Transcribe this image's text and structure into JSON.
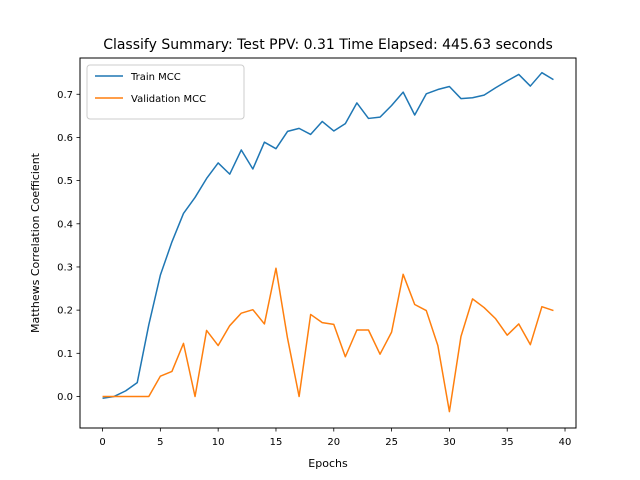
{
  "chart_data": {
    "type": "line",
    "title": "Classify Summary: Test PPV: 0.31 Time Elapsed: 445.63 seconds",
    "xlabel": "Epochs",
    "ylabel": "Matthews Correlation Coefficient",
    "xlim": [
      -1.95,
      40.95
    ],
    "ylim": [
      -0.073,
      0.784
    ],
    "xticks": [
      0,
      5,
      10,
      15,
      20,
      25,
      30,
      35,
      40
    ],
    "yticks": [
      0.0,
      0.1,
      0.2,
      0.3,
      0.4,
      0.5,
      0.6,
      0.7
    ],
    "grid": false,
    "legend_position": "upper left",
    "x": [
      0,
      1,
      2,
      3,
      4,
      5,
      6,
      7,
      8,
      9,
      10,
      11,
      12,
      13,
      14,
      15,
      16,
      17,
      18,
      19,
      20,
      21,
      22,
      23,
      24,
      25,
      26,
      27,
      28,
      29,
      30,
      31,
      32,
      33,
      34,
      35,
      36,
      37,
      38,
      39
    ],
    "series": [
      {
        "name": "Train MCC",
        "color": "#1f77b4",
        "values": [
          -0.004,
          0.0,
          0.013,
          0.032,
          0.166,
          0.281,
          0.358,
          0.424,
          0.461,
          0.505,
          0.541,
          0.515,
          0.571,
          0.527,
          0.589,
          0.574,
          0.614,
          0.621,
          0.607,
          0.637,
          0.615,
          0.632,
          0.68,
          0.644,
          0.647,
          0.674,
          0.705,
          0.652,
          0.701,
          0.711,
          0.718,
          0.69,
          0.692,
          0.698,
          0.715,
          0.731,
          0.746,
          0.719,
          0.75,
          0.734
        ]
      },
      {
        "name": "Validation MCC",
        "color": "#ff7f0e",
        "values": [
          0.0,
          0.0,
          0.0,
          0.0,
          0.0,
          0.047,
          0.058,
          0.123,
          0.0,
          0.153,
          0.118,
          0.164,
          0.193,
          0.201,
          0.168,
          0.297,
          0.135,
          0.0,
          0.19,
          0.171,
          0.167,
          0.092,
          0.154,
          0.154,
          0.098,
          0.149,
          0.283,
          0.213,
          0.199,
          0.118,
          -0.035,
          0.139,
          0.226,
          0.206,
          0.18,
          0.142,
          0.168,
          0.12,
          0.208,
          0.199
        ]
      }
    ]
  }
}
